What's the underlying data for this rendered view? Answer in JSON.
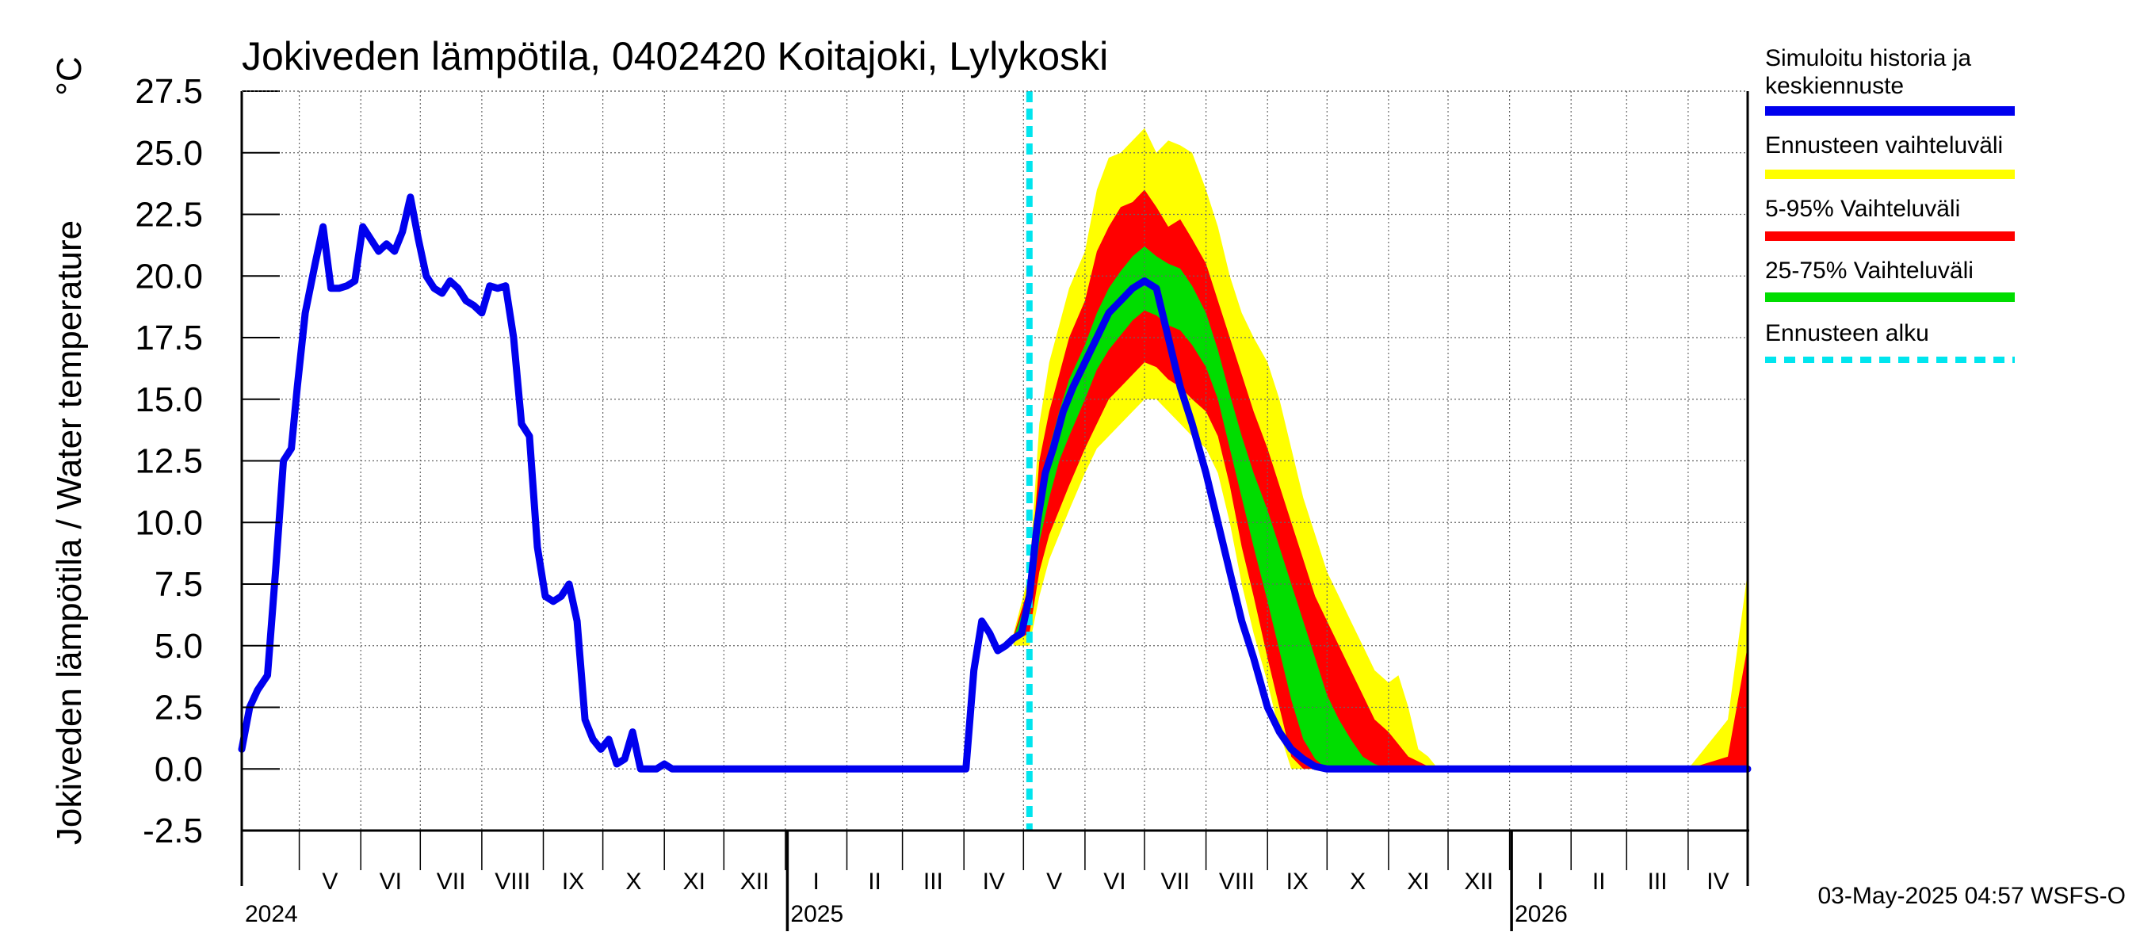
{
  "chart_data": {
    "type": "area",
    "title": "Jokiveden lämpötila, 0402420 Koitajoki, Lylykoski",
    "ylabel": "Jokiveden lämpötila / Water temperature",
    "yunit": "°C",
    "ylim": [
      -2.5,
      27.5
    ],
    "yticks": [
      "27.5",
      "25.0",
      "22.5",
      "20.0",
      "17.5",
      "15.0",
      "12.5",
      "10.0",
      "7.5",
      "5.0",
      "2.5",
      "0.0",
      "-2.5"
    ],
    "xlim": [
      "2024-04-01",
      "2026-04-30"
    ],
    "months": [
      {
        "label": "V",
        "start": "2024-04-30"
      },
      {
        "label": "VI",
        "start": "2024-05-31"
      },
      {
        "label": "VII",
        "start": "2024-06-30"
      },
      {
        "label": "VIII",
        "start": "2024-07-31"
      },
      {
        "label": "IX",
        "start": "2024-08-31"
      },
      {
        "label": "X",
        "start": "2024-09-30"
      },
      {
        "label": "XI",
        "start": "2024-10-31"
      },
      {
        "label": "XII",
        "start": "2024-11-30"
      },
      {
        "label": "I",
        "start": "2024-12-31"
      },
      {
        "label": "II",
        "start": "2025-01-31"
      },
      {
        "label": "III",
        "start": "2025-02-28"
      },
      {
        "label": "IV",
        "start": "2025-03-31"
      },
      {
        "label": "V",
        "start": "2025-04-30"
      },
      {
        "label": "VI",
        "start": "2025-05-31"
      },
      {
        "label": "VII",
        "start": "2025-06-30"
      },
      {
        "label": "VIII",
        "start": "2025-07-31"
      },
      {
        "label": "IX",
        "start": "2025-08-31"
      },
      {
        "label": "X",
        "start": "2025-09-30"
      },
      {
        "label": "XI",
        "start": "2025-10-31"
      },
      {
        "label": "XII",
        "start": "2025-11-30"
      },
      {
        "label": "I",
        "start": "2025-12-31"
      },
      {
        "label": "II",
        "start": "2026-01-31"
      },
      {
        "label": "III",
        "start": "2026-02-28"
      },
      {
        "label": "IV",
        "start": "2026-03-31"
      }
    ],
    "years": [
      {
        "label": "2024",
        "date": "2024-04-01"
      },
      {
        "label": "2025",
        "date": "2025-01-01"
      },
      {
        "label": "2026",
        "date": "2026-01-01"
      }
    ],
    "forecast_start": "2025-05-03",
    "grid": true,
    "legend_position": "right",
    "series": [
      {
        "name": "Simuloitu historia ja keskiennuste",
        "color": "#0000ee",
        "x": [
          "2024-04-01",
          "2024-04-05",
          "2024-04-09",
          "2024-04-14",
          "2024-04-18",
          "2024-04-22",
          "2024-04-26",
          "2024-04-29",
          "2024-05-03",
          "2024-05-08",
          "2024-05-12",
          "2024-05-16",
          "2024-05-20",
          "2024-05-24",
          "2024-05-28",
          "2024-06-01",
          "2024-06-05",
          "2024-06-09",
          "2024-06-13",
          "2024-06-17",
          "2024-06-21",
          "2024-06-25",
          "2024-06-29",
          "2024-07-03",
          "2024-07-07",
          "2024-07-11",
          "2024-07-15",
          "2024-07-19",
          "2024-07-23",
          "2024-07-27",
          "2024-07-31",
          "2024-08-04",
          "2024-08-08",
          "2024-08-12",
          "2024-08-16",
          "2024-08-20",
          "2024-08-24",
          "2024-08-28",
          "2024-09-01",
          "2024-09-05",
          "2024-09-09",
          "2024-09-13",
          "2024-09-17",
          "2024-09-21",
          "2024-09-25",
          "2024-09-29",
          "2024-10-03",
          "2024-10-07",
          "2024-10-11",
          "2024-10-15",
          "2024-10-19",
          "2024-10-23",
          "2024-10-27",
          "2024-10-31",
          "2024-11-04",
          "2024-11-08",
          "2024-11-12",
          "2024-11-16",
          "2024-11-20",
          "2024-11-25",
          "2024-11-30",
          "2024-12-10",
          "2024-12-31",
          "2025-01-31",
          "2025-02-28",
          "2025-03-20",
          "2025-04-01",
          "2025-04-05",
          "2025-04-09",
          "2025-04-13",
          "2025-04-17",
          "2025-04-21",
          "2025-04-25",
          "2025-04-29",
          "2025-05-03",
          "2025-05-07",
          "2025-05-11",
          "2025-05-15",
          "2025-05-20",
          "2025-05-25",
          "2025-05-31",
          "2025-06-06",
          "2025-06-12",
          "2025-06-18",
          "2025-06-24",
          "2025-06-30",
          "2025-07-06",
          "2025-07-12",
          "2025-07-18",
          "2025-07-24",
          "2025-07-31",
          "2025-08-06",
          "2025-08-12",
          "2025-08-18",
          "2025-08-24",
          "2025-08-31",
          "2025-09-06",
          "2025-09-12",
          "2025-09-18",
          "2025-09-24",
          "2025-09-30",
          "2025-10-06",
          "2025-10-12",
          "2025-10-18",
          "2025-10-24",
          "2025-10-31",
          "2025-11-05",
          "2025-11-10",
          "2025-11-15",
          "2025-11-20",
          "2025-11-30",
          "2025-12-31",
          "2026-01-31",
          "2026-02-28",
          "2026-03-31",
          "2026-04-30"
        ],
        "values": [
          0.8,
          2.5,
          3.2,
          3.8,
          8.0,
          12.5,
          13.0,
          15.5,
          18.5,
          20.5,
          22.0,
          19.5,
          19.5,
          19.6,
          19.8,
          22.0,
          21.5,
          21.0,
          21.3,
          21.0,
          21.8,
          23.2,
          21.5,
          20.0,
          19.5,
          19.3,
          19.8,
          19.5,
          19.0,
          18.8,
          18.5,
          19.6,
          19.5,
          19.6,
          17.5,
          14.0,
          13.5,
          9.0,
          7.0,
          6.8,
          7.0,
          7.5,
          6.0,
          2.0,
          1.2,
          0.8,
          1.2,
          0.2,
          0.4,
          1.5,
          0.0,
          0.0,
          0.0,
          0.2,
          0.0,
          0.0,
          0.0,
          0.0,
          0.0,
          0.0,
          0.0,
          0.0,
          0.0,
          0.0,
          0.0,
          0.0,
          0.0,
          4.0,
          6.0,
          5.5,
          4.8,
          5.0,
          5.3,
          5.5,
          7.0,
          10.0,
          12.0,
          13.0,
          14.5,
          15.5,
          16.5,
          17.5,
          18.5,
          19.0,
          19.5,
          19.8,
          19.5,
          17.5,
          15.5,
          14.0,
          12.0,
          10.0,
          8.0,
          6.0,
          4.5,
          2.5,
          1.5,
          0.8,
          0.4,
          0.1,
          0.0,
          0.0,
          0.0,
          0.0,
          0.0,
          0.0,
          0.0,
          0.0,
          0.0,
          0.0,
          0.0,
          0.0,
          0.0,
          0.0,
          0.0,
          0.0
        ]
      },
      {
        "name": "Ennusteen vaihteluväli",
        "color": "#ffff00",
        "x": [
          "2025-04-25",
          "2025-05-03",
          "2025-05-08",
          "2025-05-13",
          "2025-05-18",
          "2025-05-23",
          "2025-05-31",
          "2025-06-06",
          "2025-06-12",
          "2025-06-18",
          "2025-06-24",
          "2025-06-30",
          "2025-07-06",
          "2025-07-12",
          "2025-07-18",
          "2025-07-24",
          "2025-07-31",
          "2025-08-06",
          "2025-08-12",
          "2025-08-18",
          "2025-08-24",
          "2025-08-31",
          "2025-09-06",
          "2025-09-12",
          "2025-09-18",
          "2025-09-24",
          "2025-09-30",
          "2025-10-06",
          "2025-10-12",
          "2025-10-18",
          "2025-10-24",
          "2025-10-31",
          "2025-11-05",
          "2025-11-10",
          "2025-11-15",
          "2025-11-20",
          "2025-11-25",
          "2025-11-30",
          "2025-12-10",
          "2026-01-31",
          "2026-02-28",
          "2026-03-31",
          "2026-04-20",
          "2026-04-30"
        ],
        "upper": [
          5.5,
          8.0,
          14.0,
          16.5,
          18.0,
          19.5,
          21.0,
          23.5,
          24.8,
          25.0,
          25.5,
          26.0,
          25.0,
          25.5,
          25.3,
          25.0,
          23.5,
          22.0,
          20.0,
          18.5,
          17.5,
          16.5,
          15.0,
          13.0,
          11.0,
          9.5,
          8.0,
          7.0,
          6.0,
          5.0,
          4.0,
          3.5,
          3.8,
          2.5,
          0.8,
          0.5,
          0.0,
          0.0,
          0.0,
          0.0,
          0.0,
          0.0,
          2.0,
          8.0
        ],
        "lower": [
          5.0,
          5.0,
          7.0,
          8.5,
          9.5,
          10.5,
          12.0,
          13.0,
          13.5,
          14.0,
          14.5,
          15.0,
          15.0,
          14.5,
          14.0,
          13.5,
          13.0,
          12.0,
          10.0,
          7.5,
          5.5,
          3.5,
          1.5,
          0.0,
          0.0,
          0.0,
          0.0,
          0.0,
          0.0,
          0.0,
          0.0,
          0.0,
          0.0,
          0.0,
          0.0,
          0.0,
          0.0,
          0.0,
          0.0,
          0.0,
          0.0,
          0.0,
          0.0,
          0.0
        ]
      },
      {
        "name": "5-95% Vaihteluväli",
        "color": "#ff0000",
        "x": [
          "2025-04-25",
          "2025-05-03",
          "2025-05-08",
          "2025-05-13",
          "2025-05-18",
          "2025-05-23",
          "2025-05-31",
          "2025-06-06",
          "2025-06-12",
          "2025-06-18",
          "2025-06-24",
          "2025-06-30",
          "2025-07-06",
          "2025-07-12",
          "2025-07-18",
          "2025-07-24",
          "2025-07-31",
          "2025-08-06",
          "2025-08-12",
          "2025-08-18",
          "2025-08-24",
          "2025-08-31",
          "2025-09-06",
          "2025-09-12",
          "2025-09-18",
          "2025-09-24",
          "2025-09-30",
          "2025-10-06",
          "2025-10-12",
          "2025-10-18",
          "2025-10-24",
          "2025-10-31",
          "2025-11-05",
          "2025-11-10",
          "2025-11-15",
          "2025-11-20",
          "2025-11-25",
          "2025-11-30",
          "2025-12-10",
          "2026-01-31",
          "2026-02-28",
          "2026-03-31",
          "2026-04-20",
          "2026-04-30"
        ],
        "upper": [
          5.4,
          7.5,
          12.5,
          14.5,
          16.0,
          17.5,
          19.0,
          21.0,
          22.0,
          22.8,
          23.0,
          23.5,
          22.8,
          22.0,
          22.3,
          21.5,
          20.5,
          19.0,
          17.5,
          16.0,
          14.5,
          13.0,
          11.5,
          10.0,
          8.5,
          7.0,
          6.0,
          5.0,
          4.0,
          3.0,
          2.0,
          1.5,
          1.0,
          0.5,
          0.3,
          0.1,
          0.0,
          0.0,
          0.0,
          0.0,
          0.0,
          0.0,
          0.5,
          5.0
        ],
        "lower": [
          5.2,
          5.5,
          8.0,
          9.5,
          10.5,
          11.5,
          13.0,
          14.0,
          15.0,
          15.5,
          16.0,
          16.5,
          16.3,
          15.8,
          15.5,
          15.0,
          14.5,
          13.5,
          11.5,
          9.0,
          7.0,
          4.5,
          2.5,
          0.5,
          0.0,
          0.0,
          0.0,
          0.0,
          0.0,
          0.0,
          0.0,
          0.0,
          0.0,
          0.0,
          0.0,
          0.0,
          0.0,
          0.0,
          0.0,
          0.0,
          0.0,
          0.0,
          0.0,
          0.0
        ]
      },
      {
        "name": "25-75% Vaihteluväli",
        "color": "#00dd00",
        "x": [
          "2025-04-25",
          "2025-05-03",
          "2025-05-08",
          "2025-05-13",
          "2025-05-18",
          "2025-05-23",
          "2025-05-31",
          "2025-06-06",
          "2025-06-12",
          "2025-06-18",
          "2025-06-24",
          "2025-06-30",
          "2025-07-06",
          "2025-07-12",
          "2025-07-18",
          "2025-07-24",
          "2025-07-31",
          "2025-08-06",
          "2025-08-12",
          "2025-08-18",
          "2025-08-24",
          "2025-08-31",
          "2025-09-06",
          "2025-09-12",
          "2025-09-18",
          "2025-09-24",
          "2025-09-30",
          "2025-10-06",
          "2025-10-12",
          "2025-10-18",
          "2025-10-24",
          "2025-10-31",
          "2025-11-05",
          "2025-11-10",
          "2025-11-15",
          "2025-11-20",
          "2025-11-25",
          "2025-11-30",
          "2025-12-10",
          "2026-01-31",
          "2026-02-28",
          "2026-03-31",
          "2026-04-20",
          "2026-04-30"
        ],
        "upper": [
          5.3,
          7.2,
          11.2,
          13.0,
          14.5,
          15.8,
          17.2,
          18.5,
          19.5,
          20.2,
          20.8,
          21.2,
          20.8,
          20.5,
          20.3,
          19.6,
          18.5,
          17.0,
          15.2,
          13.5,
          12.0,
          10.5,
          9.0,
          7.5,
          6.0,
          4.5,
          3.0,
          2.0,
          1.2,
          0.5,
          0.2,
          0.0,
          0.0,
          0.0,
          0.0,
          0.0,
          0.0,
          0.0,
          0.0,
          0.0,
          0.0,
          0.0,
          0.0,
          0.0
        ],
        "lower": [
          5.3,
          6.0,
          9.2,
          11.0,
          12.5,
          13.5,
          15.0,
          16.2,
          17.0,
          17.6,
          18.2,
          18.6,
          18.4,
          18.0,
          17.8,
          17.2,
          16.3,
          15.0,
          13.0,
          11.0,
          9.0,
          6.8,
          4.8,
          2.8,
          1.2,
          0.4,
          0.0,
          0.0,
          0.0,
          0.0,
          0.0,
          0.0,
          0.0,
          0.0,
          0.0,
          0.0,
          0.0,
          0.0,
          0.0,
          0.0,
          0.0,
          0.0,
          0.0,
          0.0
        ]
      },
      {
        "name": "Ennusteen alku",
        "color": "#00e5ee"
      }
    ]
  },
  "footer": "03-May-2025 04:57 WSFS-O"
}
